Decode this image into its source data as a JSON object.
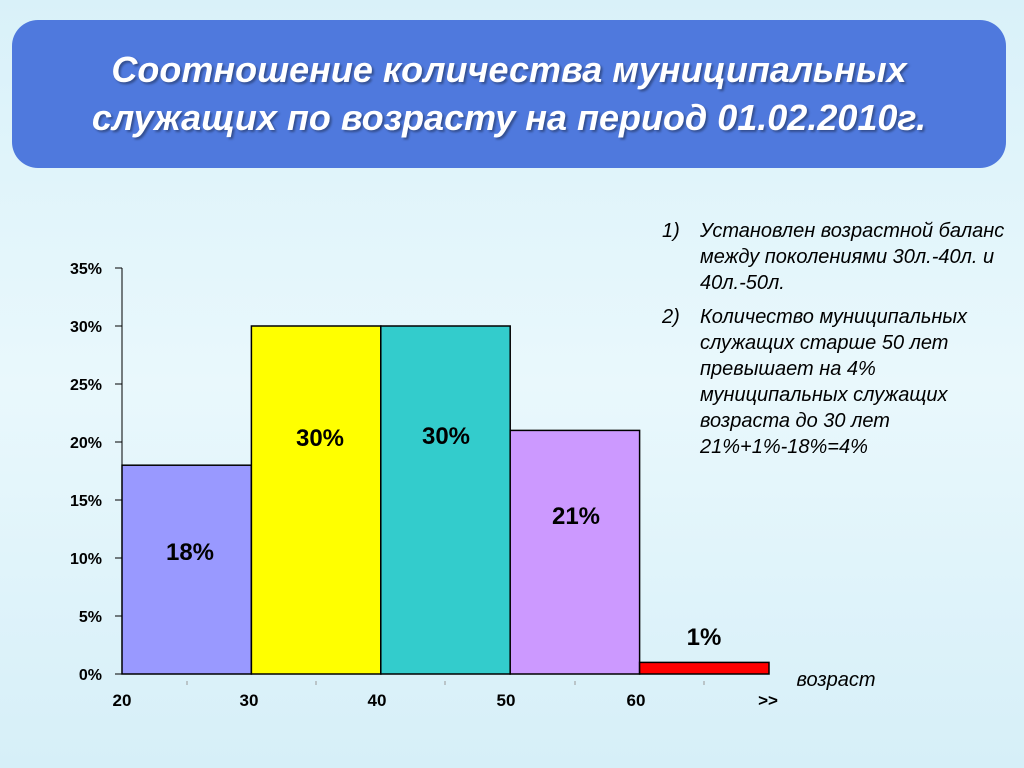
{
  "slide": {
    "title": "Соотношение количества муниципальных служащих по возрасту на период 01.02.2010г."
  },
  "notes": [
    {
      "num": "1)",
      "text": "Установлен возрастной баланс между поколениями 30л.-40л. и 40л.-50л."
    },
    {
      "num": "2)",
      "text": "Количество муниципальных служащих старше 50 лет превышает на 4% муниципальных служащих возраста до 30  лет 21%+1%-18%=4%"
    }
  ],
  "chart_data": {
    "type": "bar",
    "categories": [
      "20-30",
      "30-40",
      "40-50",
      "50-60",
      "60->>"
    ],
    "values": [
      18,
      30,
      30,
      21,
      1
    ],
    "data_labels": [
      "18%",
      "30%",
      "30%",
      "21%",
      "1%"
    ],
    "colors": [
      "#9999ff",
      "#ffff00",
      "#33cccc",
      "#cc99ff",
      "#ff0000"
    ],
    "x_tick_labels": [
      "20",
      "30",
      "40",
      "50",
      "60",
      ">>"
    ],
    "y_tick_labels": [
      "0%",
      "5%",
      "10%",
      "15%",
      "20%",
      "25%",
      "30%",
      "35%"
    ],
    "xlabel": "возраст",
    "ylabel": "",
    "ylim": [
      0,
      35
    ],
    "grid": false,
    "legend": false
  }
}
